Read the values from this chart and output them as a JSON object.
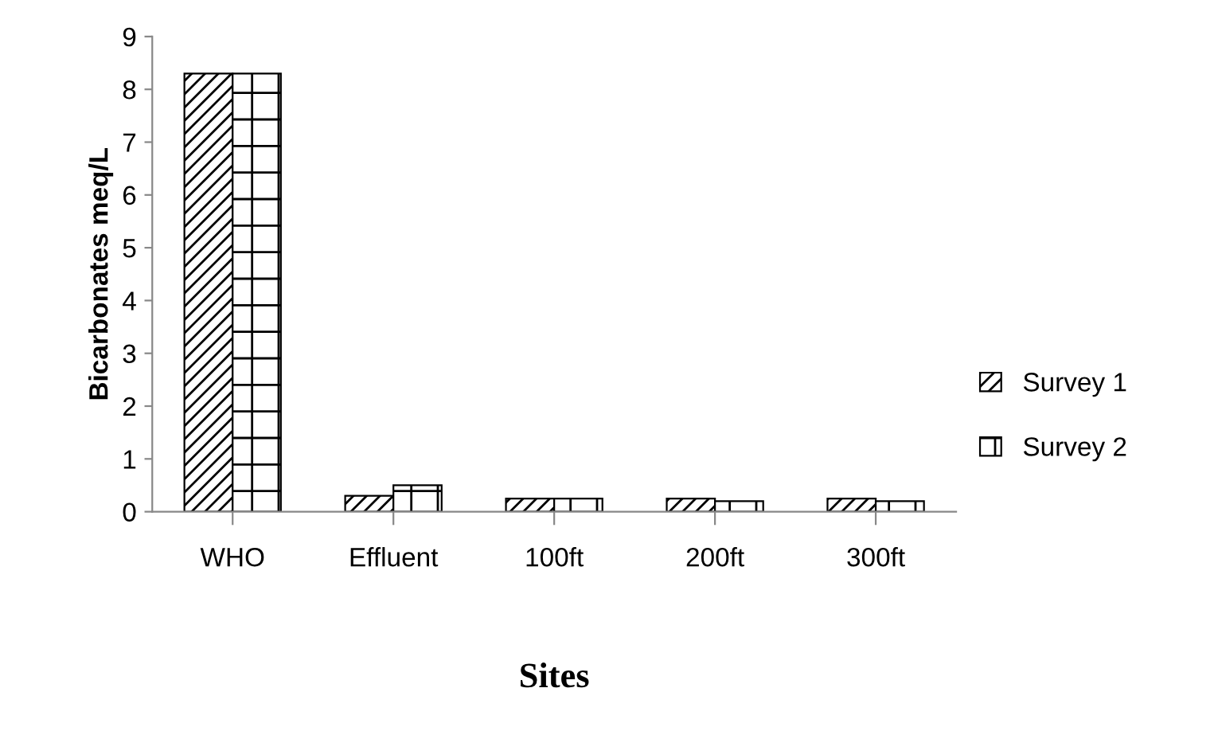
{
  "chart_data": {
    "type": "bar",
    "xlabel": "Sites",
    "ylabel": "Bicarbonates meq/L",
    "categories": [
      "WHO",
      "Effluent",
      "100ft",
      "200ft",
      "300ft"
    ],
    "series": [
      {
        "name": "Survey 1",
        "color": "#000000",
        "values": [
          8.3,
          0.3,
          0.25,
          0.25,
          0.25
        ]
      },
      {
        "name": "Survey 2",
        "color": "#000000",
        "values": [
          8.3,
          0.5,
          0.25,
          0.2,
          0.2
        ]
      }
    ],
    "ylim": [
      0,
      9
    ],
    "yticks": [
      0,
      1,
      2,
      3,
      4,
      5,
      6,
      7,
      8,
      9
    ],
    "grid": false,
    "legend": "right"
  }
}
